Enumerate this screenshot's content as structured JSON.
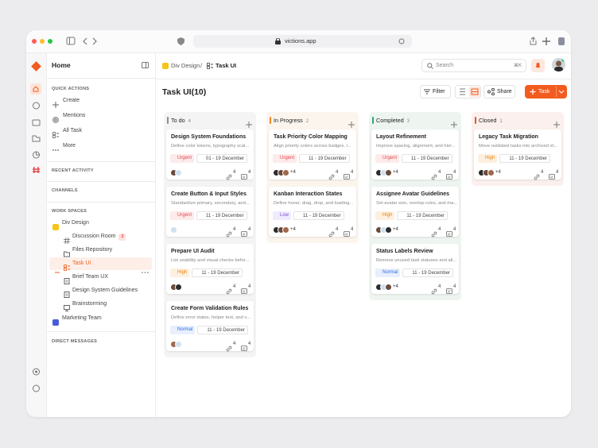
{
  "browser": {
    "url": "victions.app"
  },
  "sidebar": {
    "title": "Home",
    "quick_actions": {
      "heading": "QUICK ACTIONS",
      "items": [
        "Create",
        "Mentions",
        "All Task",
        "More"
      ]
    },
    "recent_activity": "RECENT ACTIVITY",
    "channels": "CHANNELS",
    "workspaces": {
      "heading": "WORK SPACES",
      "items": [
        {
          "label": "Div Design"
        },
        {
          "label": "Discussion Room",
          "badge": "2"
        },
        {
          "label": "Files Repository"
        },
        {
          "label": "Task UI"
        },
        {
          "label": "Brief Team UX"
        },
        {
          "label": "Design System Guidelines"
        },
        {
          "label": "Brainstorming"
        },
        {
          "label": "Marketing Team"
        }
      ]
    },
    "direct_messages": "DIRECT MESSAGES"
  },
  "header": {
    "breadcrumb": [
      "Div Design",
      "Task UI"
    ],
    "separator": "/",
    "search": "Search",
    "shortcut": "⌘K",
    "title": "Task UI(10)",
    "filter": "Filter",
    "share": "Share",
    "new_task": "Task"
  },
  "board": {
    "columns": [
      {
        "name": "To do",
        "count": "4",
        "color": "#8a8a8f",
        "bg": "#f4f4f5",
        "cards": [
          {
            "title": "Design System Foundations",
            "desc": "Define color tokens, typography scal...",
            "priority": "Urgent",
            "priority_color": "#e5484d",
            "priority_bg": "#fdeaea",
            "date": "01 - 19 December",
            "links": "4",
            "comments": "4"
          },
          {
            "title": "Create Button & Input Styles",
            "desc": "Standardize primary, secondary, and...",
            "priority": "Urgent",
            "priority_color": "#e5484d",
            "priority_bg": "#fdeaea",
            "date": "11 - 19 December",
            "links": "4",
            "comments": "4"
          },
          {
            "title": "Prepare UI Audit",
            "desc": "List usability and visual checks befor...",
            "priority": "High",
            "priority_color": "#e8830c",
            "priority_bg": "#fdf0df",
            "date": "11 - 19 December",
            "links": "4",
            "comments": "4"
          },
          {
            "title": "Create Form Validation Rules",
            "desc": "Define error states, helper text, and v...",
            "priority": "Normal",
            "priority_color": "#2f6fe4",
            "priority_bg": "#e8effd",
            "date": "11 - 19 December",
            "links": "4",
            "comments": "4"
          }
        ]
      },
      {
        "name": "In Progress",
        "count": "2",
        "color": "#f08a24",
        "bg": "#fbf5ee",
        "cards": [
          {
            "title": "Task Priority Color Mapping",
            "desc": "Align priority colors across badges, l...",
            "priority": "Urgent",
            "priority_color": "#e5484d",
            "priority_bg": "#fdeaea",
            "date": "11 - 19 December",
            "extra": "+4",
            "links": "4",
            "comments": "4"
          },
          {
            "title": "Kanban Interaction States",
            "desc": "Define hover, drag, drop, and loading...",
            "priority": "Low",
            "priority_color": "#7c4ddc",
            "priority_bg": "#f0eafd",
            "date": "11 - 19 December",
            "extra": "+4",
            "links": "4",
            "comments": "4"
          }
        ]
      },
      {
        "name": "Completed",
        "count": "3",
        "color": "#2fa66a",
        "bg": "#eef5f0",
        "cards": [
          {
            "title": "Layout Refinement",
            "desc": "Improve spacing, alignment, and hier...",
            "priority": "Urgent",
            "priority_color": "#e5484d",
            "priority_bg": "#fdeaea",
            "date": "11 - 19 December",
            "extra": "+4",
            "links": "4",
            "comments": "4"
          },
          {
            "title": "Assignee Avatar Guidelines",
            "desc": "Set avatar size, overlap rules, and ma...",
            "priority": "High",
            "priority_color": "#e8830c",
            "priority_bg": "#fdf0df",
            "date": "11 - 19 December",
            "extra": "+4",
            "links": "4",
            "comments": "4"
          },
          {
            "title": "Status Labels Review",
            "desc": "Remove unused task statuses and ali...",
            "priority": "Normal",
            "priority_color": "#2f6fe4",
            "priority_bg": "#e8effd",
            "date": "11 - 19 December",
            "extra": "+4",
            "links": "4",
            "comments": "4"
          }
        ]
      },
      {
        "name": "Closed",
        "count": "1",
        "color": "#e5562d",
        "bg": "#fbf0ed",
        "cards": [
          {
            "title": "Legacy Task Migration",
            "desc": "Move outdated tasks into archived st...",
            "priority": "High",
            "priority_color": "#e8830c",
            "priority_bg": "#fdf0df",
            "date": "11 - 19 December",
            "extra": "+4",
            "links": "4",
            "comments": "4"
          }
        ]
      }
    ]
  }
}
